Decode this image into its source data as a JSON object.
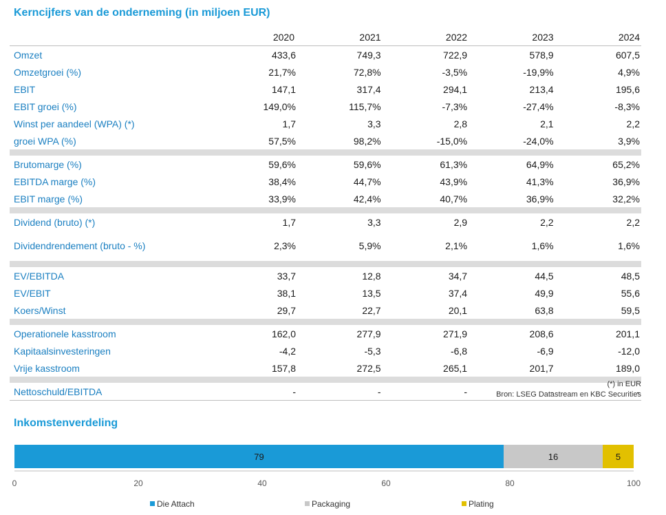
{
  "table": {
    "title": "Kerncijfers van de onderneming (in miljoen EUR)",
    "years": [
      "2020",
      "2021",
      "2022",
      "2023",
      "2024"
    ],
    "groups": [
      [
        {
          "label": "Omzet",
          "values": [
            "433,6",
            "749,3",
            "722,9",
            "578,9",
            "607,5"
          ]
        },
        {
          "label": "Omzetgroei (%)",
          "values": [
            "21,7%",
            "72,8%",
            "-3,5%",
            "-19,9%",
            "4,9%"
          ]
        },
        {
          "label": "EBIT",
          "values": [
            "147,1",
            "317,4",
            "294,1",
            "213,4",
            "195,6"
          ]
        },
        {
          "label": "EBIT groei (%)",
          "values": [
            "149,0%",
            "115,7%",
            "-7,3%",
            "-27,4%",
            "-8,3%"
          ]
        },
        {
          "label": "Winst per aandeel (WPA) (*)",
          "values": [
            "1,7",
            "3,3",
            "2,8",
            "2,1",
            "2,2"
          ]
        },
        {
          "label": "groei WPA (%)",
          "values": [
            "57,5%",
            "98,2%",
            "-15,0%",
            "-24,0%",
            "3,9%"
          ]
        }
      ],
      [
        {
          "label": "Brutomarge (%)",
          "values": [
            "59,6%",
            "59,6%",
            "61,3%",
            "64,9%",
            "65,2%"
          ]
        },
        {
          "label": "EBITDA marge (%)",
          "values": [
            "38,4%",
            "44,7%",
            "43,9%",
            "41,3%",
            "36,9%"
          ]
        },
        {
          "label": "EBIT marge (%)",
          "values": [
            "33,9%",
            "42,4%",
            "40,7%",
            "36,9%",
            "32,2%"
          ]
        }
      ],
      [
        {
          "label": "Dividend (bruto) (*)",
          "values": [
            "1,7",
            "3,3",
            "2,9",
            "2,2",
            "2,2"
          ]
        },
        {
          "label": "Dividendrendement (bruto - %)",
          "values": [
            "2,3%",
            "5,9%",
            "2,1%",
            "1,6%",
            "1,6%"
          ]
        }
      ],
      [
        {
          "label": "EV/EBITDA",
          "values": [
            "33,7",
            "12,8",
            "34,7",
            "44,5",
            "48,5"
          ]
        },
        {
          "label": "EV/EBIT",
          "values": [
            "38,1",
            "13,5",
            "37,4",
            "49,9",
            "55,6"
          ]
        },
        {
          "label": "Koers/Winst",
          "values": [
            "29,7",
            "22,7",
            "20,1",
            "63,8",
            "59,5"
          ]
        }
      ],
      [
        {
          "label": "Operationele kasstroom",
          "values": [
            "162,0",
            "277,9",
            "271,9",
            "208,6",
            "201,1"
          ]
        },
        {
          "label": "Kapitaalsinvesteringen",
          "values": [
            "-4,2",
            "-5,3",
            "-6,8",
            "-6,9",
            "-12,0"
          ]
        },
        {
          "label": "Vrije kasstroom",
          "values": [
            "157,8",
            "272,5",
            "265,1",
            "201,7",
            "189,0"
          ]
        }
      ],
      [
        {
          "label": "Nettoschuld/EBITDA",
          "values": [
            "-",
            "-",
            "-",
            "-",
            "-"
          ]
        }
      ]
    ],
    "footnote": "(*) in EUR",
    "source": "Bron: LSEG Datastream en KBC Securities"
  },
  "chart_data": {
    "type": "bar",
    "orientation": "horizontal-stacked",
    "title": "Inkomstenverdeling",
    "series": [
      {
        "name": "Die Attach",
        "value": 79,
        "color": "#1a9ad7"
      },
      {
        "name": "Packaging",
        "value": 16,
        "color": "#c8c8c8"
      },
      {
        "name": "Plating",
        "value": 5,
        "color": "#e2c000"
      }
    ],
    "xlim": [
      0,
      100
    ],
    "xticks": [
      "0",
      "20",
      "40",
      "60",
      "80",
      "100"
    ],
    "legend_position": "bottom"
  }
}
